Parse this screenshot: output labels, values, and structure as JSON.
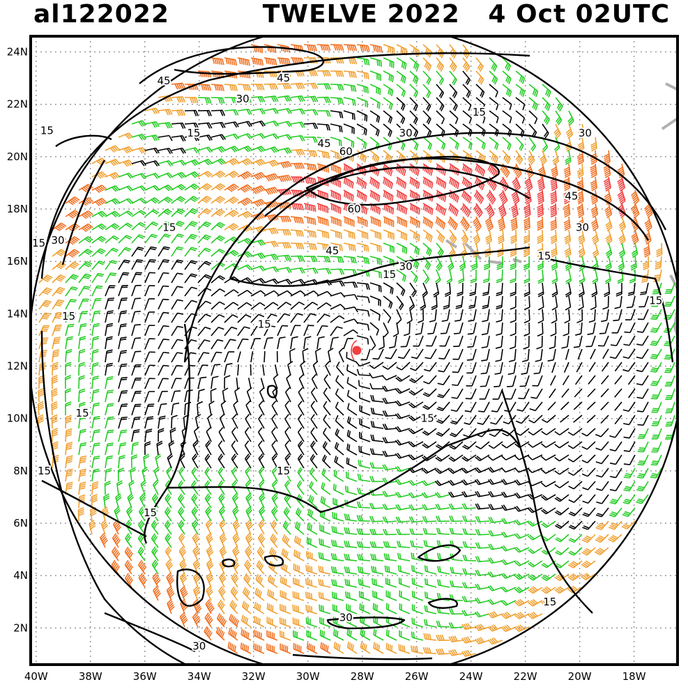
{
  "header": {
    "storm_id": "al122022",
    "storm_info": "TWELVE 2022   4 Oct 02UTC"
  },
  "axes": {
    "lat_labels": [
      "24N",
      "22N",
      "20N",
      "18N",
      "16N",
      "14N",
      "12N",
      "10N",
      "8N",
      "6N",
      "4N",
      "2N"
    ],
    "lat_values": [
      24,
      22,
      20,
      18,
      16,
      14,
      12,
      10,
      8,
      6,
      4,
      2
    ],
    "lon_labels": [
      "40W",
      "38W",
      "36W",
      "34W",
      "32W",
      "30W",
      "28W",
      "26W",
      "24W",
      "22W",
      "20W",
      "18W"
    ],
    "lon_values": [
      -40,
      -38,
      -36,
      -34,
      -32,
      -30,
      -28,
      -26,
      -24,
      -22,
      -20,
      -18
    ],
    "lat_range": [
      0.6,
      24.6
    ],
    "lon_range": [
      -40.2,
      -16.4
    ],
    "grid": "dotted"
  },
  "storm_center": {
    "lat": 12.6,
    "lon": -28.2,
    "color": "#f04040"
  },
  "contour_labels": [
    {
      "text": "45",
      "lat": 22.9,
      "lon": -35.3
    },
    {
      "text": "45",
      "lat": 23.0,
      "lon": -30.9
    },
    {
      "text": "30",
      "lat": 22.2,
      "lon": -32.4
    },
    {
      "text": "15",
      "lat": 21.0,
      "lon": -39.6
    },
    {
      "text": "15",
      "lat": 20.9,
      "lon": -34.2
    },
    {
      "text": "15",
      "lat": 21.7,
      "lon": -23.7
    },
    {
      "text": "30",
      "lat": 20.9,
      "lon": -26.4
    },
    {
      "text": "45",
      "lat": 20.5,
      "lon": -29.4
    },
    {
      "text": "60",
      "lat": 20.2,
      "lon": -28.6
    },
    {
      "text": "30",
      "lat": 20.9,
      "lon": -19.8
    },
    {
      "text": "60",
      "lat": 18.0,
      "lon": -28.3
    },
    {
      "text": "45",
      "lat": 18.5,
      "lon": -20.3
    },
    {
      "text": "30",
      "lat": 17.3,
      "lon": -19.9
    },
    {
      "text": "15",
      "lat": 17.3,
      "lon": -35.1
    },
    {
      "text": "30",
      "lat": 16.8,
      "lon": -39.2
    },
    {
      "text": "15",
      "lat": 16.7,
      "lon": -39.9
    },
    {
      "text": "45",
      "lat": 16.4,
      "lon": -29.1
    },
    {
      "text": "15",
      "lat": 16.2,
      "lon": -21.3
    },
    {
      "text": "30",
      "lat": 15.8,
      "lon": -26.4
    },
    {
      "text": "15",
      "lat": 15.5,
      "lon": -27.0
    },
    {
      "text": "15",
      "lat": 14.5,
      "lon": -17.2
    },
    {
      "text": "15",
      "lat": 13.9,
      "lon": -38.8
    },
    {
      "text": "15",
      "lat": 13.6,
      "lon": -31.6
    },
    {
      "text": "15",
      "lat": 10.2,
      "lon": -38.3
    },
    {
      "text": "15",
      "lat": 10.0,
      "lon": -25.6
    },
    {
      "text": "15",
      "lat": 8.0,
      "lon": -39.7
    },
    {
      "text": "15",
      "lat": 8.0,
      "lon": -30.9
    },
    {
      "text": "15",
      "lat": 6.4,
      "lon": -35.8
    },
    {
      "text": "15",
      "lat": 3.0,
      "lon": -21.1
    },
    {
      "text": "30",
      "lat": 2.4,
      "lon": -28.6
    },
    {
      "text": "30",
      "lat": 1.3,
      "lon": -34.0
    }
  ],
  "colors": {
    "calm_barb": "#000000",
    "tropical_storm_barb": "#22cc22",
    "gale_barb": "#f0a030",
    "storm_barb": "#f07020",
    "strong_barb": "#f04040",
    "coast": "#b0b0b0",
    "contour": "#000000"
  }
}
